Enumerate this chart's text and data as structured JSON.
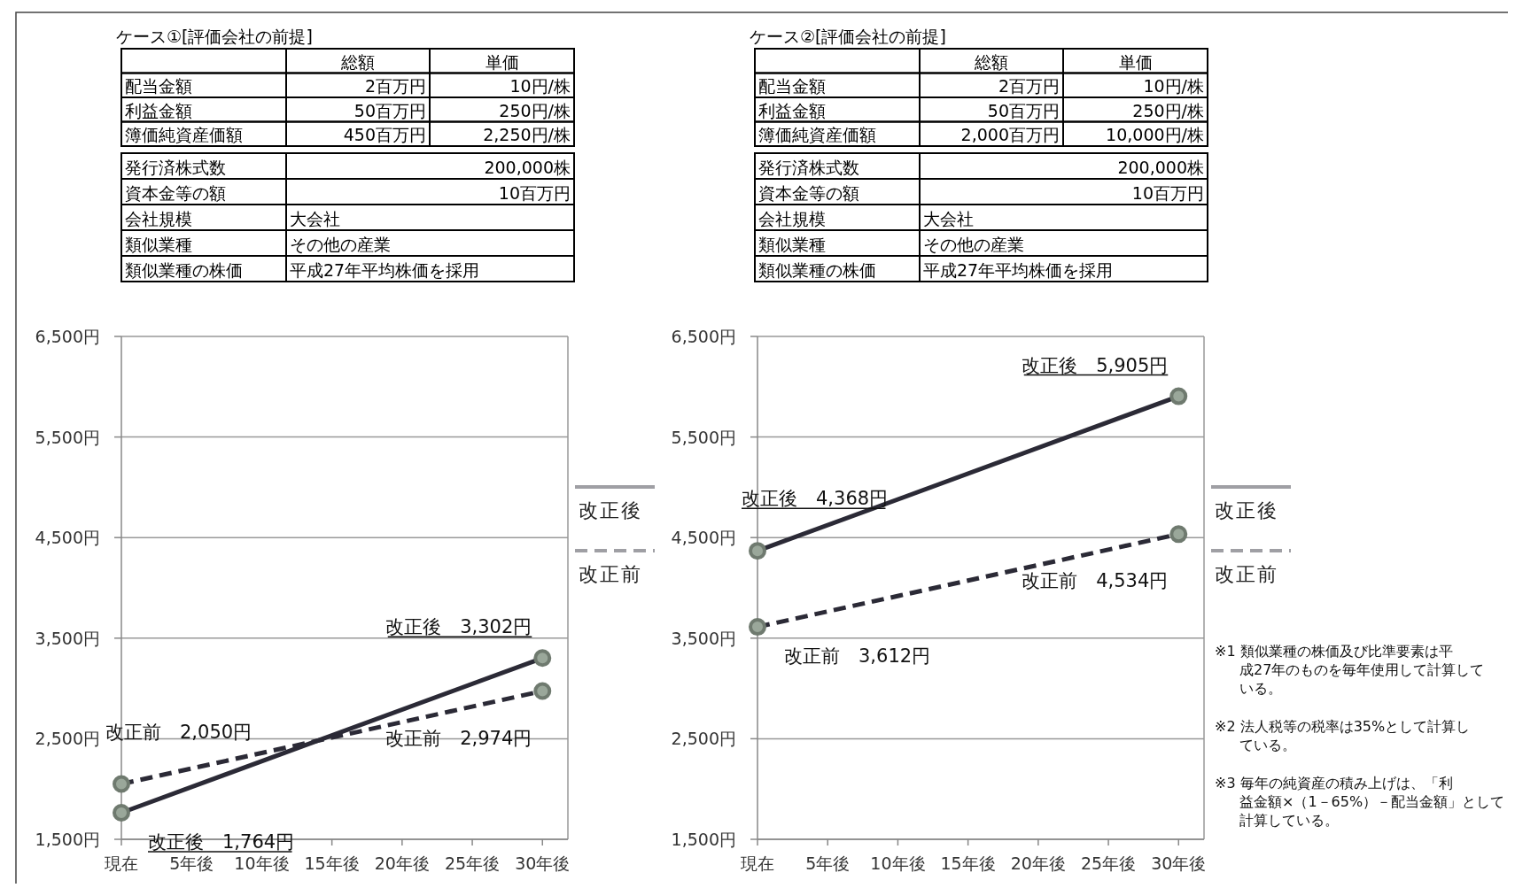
{
  "chart_data": [
    {
      "type": "other",
      "title": "ケース①[評価会社の前提]",
      "categories": [
        null,
        "総額",
        "単価"
      ],
      "y_categories": [
        "配当金額",
        "利益金額",
        "簿価純資産価額",
        "発行済株式数",
        "資本金等の額",
        "会社規模",
        "類似業種",
        "類似業種の株価"
      ],
      "cell_labels": [
        [
          "2百万円",
          "10円/株"
        ],
        [
          "50百万円",
          "250円/株"
        ],
        [
          "450百万円",
          "2,250円/株"
        ],
        [
          "200,000株"
        ],
        [
          "10百万円"
        ],
        [
          "大会社"
        ],
        [
          "その他の産業"
        ],
        [
          "平成27年平均株価を採用"
        ]
      ]
    },
    {
      "type": "line",
      "categories": [
        "現在",
        "5年後",
        "10年後",
        "15年後",
        "20年後",
        "25年後",
        "30年後"
      ],
      "ylim": [
        1500,
        6500
      ],
      "yticks": [
        {
          "value": 1500,
          "label": "1,500円"
        },
        {
          "value": 2500,
          "label": "2,500円"
        },
        {
          "value": 3500,
          "label": "3,500円"
        },
        {
          "value": 4500,
          "label": "4,500円"
        },
        {
          "value": 5500,
          "label": "5,500円"
        },
        {
          "value": 6500,
          "label": "6,500円"
        }
      ],
      "grid": "y",
      "legend": "right",
      "marker": "circle",
      "series": [
        {
          "name": "改正後",
          "color": "#2b2a36",
          "line_style": "solid",
          "values": [
            1764,
            null,
            null,
            null,
            null,
            null,
            3302
          ],
          "value_labels": [
            "改正後　1,764円",
            null,
            null,
            null,
            null,
            null,
            "改正後　3,302円"
          ]
        },
        {
          "name": "改正前",
          "color": "#2b2a36",
          "line_style": "dashed",
          "values": [
            2050,
            null,
            null,
            null,
            null,
            null,
            2974
          ],
          "value_labels": [
            "改正前　2,050円",
            null,
            null,
            null,
            null,
            null,
            "改正前　2,974円"
          ]
        }
      ]
    },
    {
      "type": "other",
      "title": "ケース②[評価会社の前提]",
      "categories": [
        null,
        "総額",
        "単価"
      ],
      "y_categories": [
        "配当金額",
        "利益金額",
        "簿価純資産価額",
        "発行済株式数",
        "資本金等の額",
        "会社規模",
        "類似業種",
        "類似業種の株価"
      ],
      "cell_labels": [
        [
          "2百万円",
          "10円/株"
        ],
        [
          "50百万円",
          "250円/株"
        ],
        [
          "2,000百万円",
          "10,000円/株"
        ],
        [
          "200,000株"
        ],
        [
          "10百万円"
        ],
        [
          "大会社"
        ],
        [
          "その他の産業"
        ],
        [
          "平成27年平均株価を採用"
        ]
      ]
    },
    {
      "type": "line",
      "categories": [
        "現在",
        "5年後",
        "10年後",
        "15年後",
        "20年後",
        "25年後",
        "30年後"
      ],
      "ylim": [
        1500,
        6500
      ],
      "yticks": [
        {
          "value": 1500,
          "label": "1,500円"
        },
        {
          "value": 2500,
          "label": "2,500円"
        },
        {
          "value": 3500,
          "label": "3,500円"
        },
        {
          "value": 4500,
          "label": "4,500円"
        },
        {
          "value": 5500,
          "label": "5,500円"
        },
        {
          "value": 6500,
          "label": "6,500円"
        }
      ],
      "grid": "y",
      "legend": "right",
      "marker": "circle",
      "series": [
        {
          "name": "改正後",
          "color": "#2b2a36",
          "line_style": "solid",
          "values": [
            4368,
            null,
            null,
            null,
            null,
            null,
            5905
          ],
          "value_labels": [
            "改正後　4,368円",
            null,
            null,
            null,
            null,
            null,
            "改正後　5,905円"
          ]
        },
        {
          "name": "改正前",
          "color": "#2b2a36",
          "line_style": "dashed",
          "values": [
            3612,
            null,
            null,
            null,
            null,
            null,
            4534
          ],
          "value_labels": [
            "改正前　3,612円",
            null,
            null,
            null,
            null,
            null,
            "改正前　4,534円"
          ]
        }
      ],
      "annotations": [
        "※1 類似業種の株価及び比準要素は平成27年のものを毎年使用して計算している。",
        "※2 法人税等の税率は35%として計算している。",
        "※3 毎年の純資産の積み上げは、「利益金額×（1－65%）－配当金額」として計算している。"
      ]
    }
  ]
}
